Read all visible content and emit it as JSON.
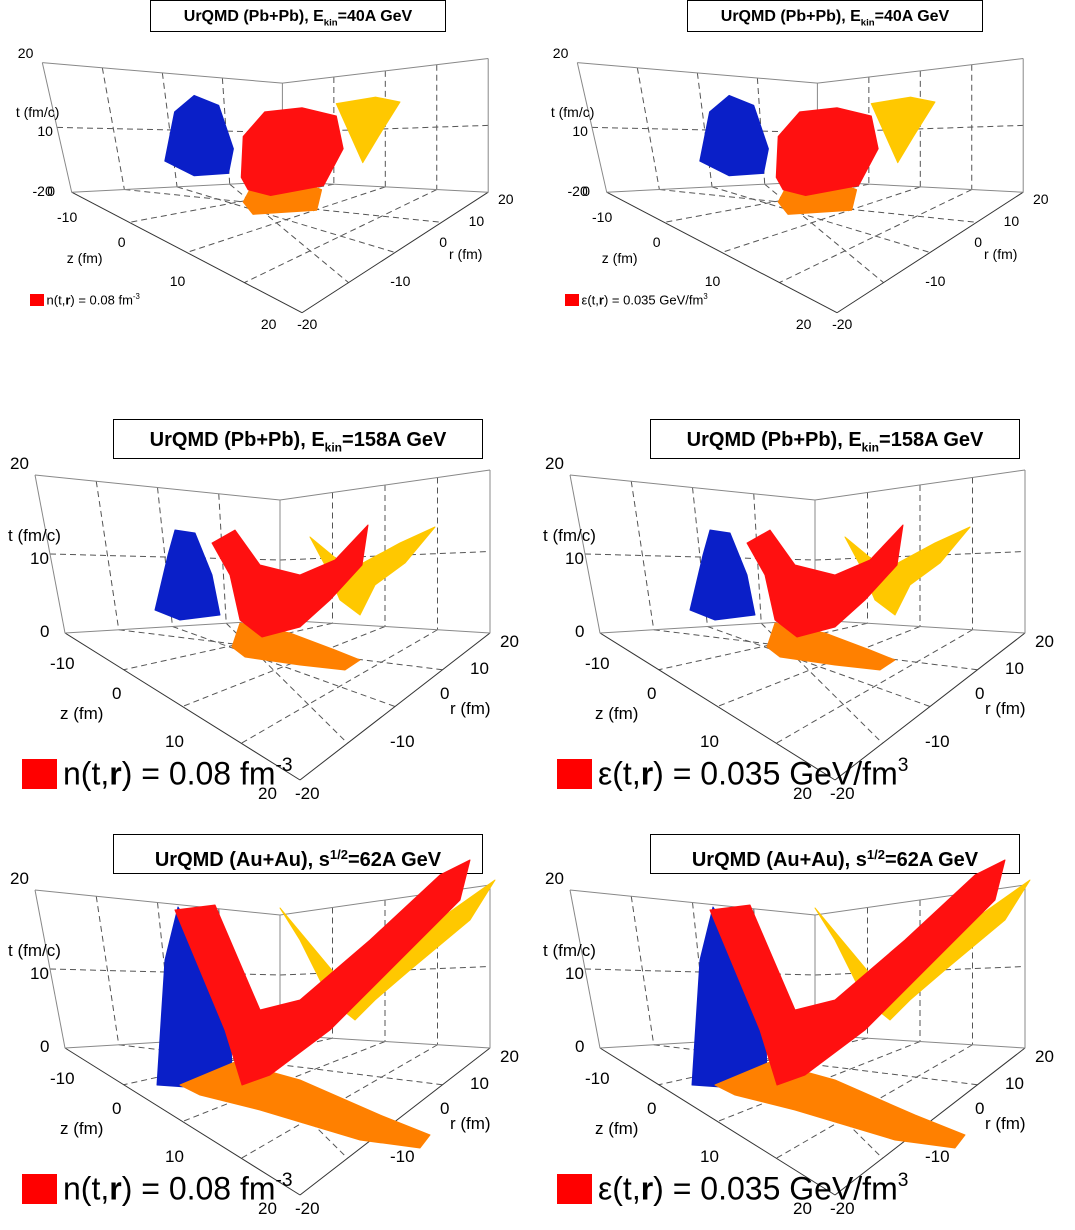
{
  "colors": {
    "red_surface": "#ff1010",
    "blue_projection": "#0a1fc8",
    "yellow_projection": "#ffc800",
    "orange_projection": "#ff8000",
    "legend_swatch": "#ff0000",
    "grid_line": "#555555"
  },
  "panels": [
    {
      "title_main": "UrQMD (Pb+Pb), E",
      "title_sub": "kin",
      "title_sup": "",
      "title_rest": "=40A GeV",
      "axis": {
        "t_label": "t (fm/c)",
        "t_max": "20",
        "t_mid": "10",
        "t_min": "0",
        "z_label": "z (fm)",
        "z_ticks": [
          "-10",
          "0",
          "10",
          "20"
        ],
        "r_label": "r (fm)",
        "r_ticks": [
          "20",
          "10",
          "0",
          "-10",
          "-20"
        ],
        "t_min_extra": "-20"
      },
      "legend_text": "n(t,",
      "legend_bold": "r",
      "legend_rest": ") = 0.08 fm",
      "legend_sup": "-3"
    },
    {
      "title_main": "UrQMD (Pb+Pb), E",
      "title_sub": "kin",
      "title_sup": "",
      "title_rest": "=40A GeV",
      "axis": {
        "t_label": "t (fm/c)",
        "t_max": "20",
        "t_mid": "10",
        "t_min": "0",
        "z_label": "z (fm)",
        "z_ticks": [
          "-10",
          "0",
          "10",
          "20"
        ],
        "r_label": "r (fm)",
        "r_ticks": [
          "20",
          "10",
          "0",
          "-10",
          "-20"
        ],
        "t_min_extra": "-20"
      },
      "legend_text": "ε(t,",
      "legend_bold": "r",
      "legend_rest": ") = 0.035 GeV/fm",
      "legend_sup": "3"
    },
    {
      "title_main": "UrQMD (Pb+Pb), E",
      "title_sub": "kin",
      "title_sup": "",
      "title_rest": "=158A GeV",
      "axis": {
        "t_label": "t (fm/c)",
        "t_max": "20",
        "t_mid": "10",
        "t_min": "0",
        "z_label": "z (fm)",
        "z_ticks": [
          "-10",
          "0",
          "10",
          "20"
        ],
        "r_label": "r (fm)",
        "r_ticks": [
          "20",
          "10",
          "0",
          "-10",
          "-20"
        ],
        "t_min_extra": ""
      },
      "legend_text": "n(t,",
      "legend_bold": "r",
      "legend_rest": ") = 0.08 fm",
      "legend_sup": "-3"
    },
    {
      "title_main": "UrQMD (Pb+Pb), E",
      "title_sub": "kin",
      "title_sup": "",
      "title_rest": "=158A GeV",
      "axis": {
        "t_label": "t (fm/c)",
        "t_max": "20",
        "t_mid": "10",
        "t_min": "0",
        "z_label": "z (fm)",
        "z_ticks": [
          "-10",
          "0",
          "10",
          "20"
        ],
        "r_label": "r (fm)",
        "r_ticks": [
          "20",
          "10",
          "0",
          "-10",
          "-20"
        ],
        "t_min_extra": ""
      },
      "legend_text": "ε(t,",
      "legend_bold": "r",
      "legend_rest": ") = 0.035 GeV/fm",
      "legend_sup": "3"
    },
    {
      "title_main": "UrQMD (Au+Au), s",
      "title_sub": "",
      "title_sup": "1/2",
      "title_rest": "=62A GeV",
      "axis": {
        "t_label": "t (fm/c)",
        "t_max": "20",
        "t_mid": "10",
        "t_min": "0",
        "z_label": "z (fm)",
        "z_ticks": [
          "-10",
          "0",
          "10",
          "20"
        ],
        "r_label": "r (fm)",
        "r_ticks": [
          "20",
          "10",
          "0",
          "-10",
          "-20"
        ],
        "t_min_extra": ""
      },
      "legend_text": "n(t,",
      "legend_bold": "r",
      "legend_rest": ") = 0.08 fm",
      "legend_sup": "-3"
    },
    {
      "title_main": "UrQMD (Au+Au), s",
      "title_sub": "",
      "title_sup": "1/2",
      "title_rest": "=62A GeV",
      "axis": {
        "t_label": "t (fm/c)",
        "t_max": "20",
        "t_mid": "10",
        "t_min": "0",
        "z_label": "z (fm)",
        "z_ticks": [
          "-10",
          "0",
          "10",
          "20"
        ],
        "r_label": "r (fm)",
        "r_ticks": [
          "20",
          "10",
          "0",
          "-10",
          "-20"
        ],
        "t_min_extra": ""
      },
      "legend_text": "ε(t,",
      "legend_bold": "r",
      "legend_rest": ") = 0.035 GeV/fm",
      "legend_sup": "3"
    }
  ]
}
